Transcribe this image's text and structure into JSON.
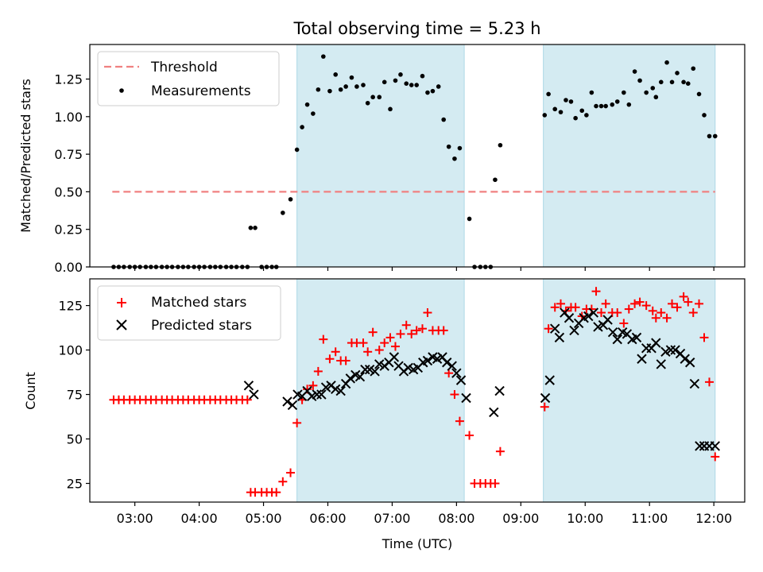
{
  "title": "Total observing time = 5.23 h",
  "colors": {
    "threshold": "#f08080",
    "measurement": "#000000",
    "matched": "#ff0000",
    "predicted": "#000000",
    "observing_window": "#add8e6"
  },
  "chart_data": [
    {
      "type": "scatter",
      "panel": "top",
      "ylabel": "Matched/Predicted stars",
      "xlim": [
        2.3,
        12.48
      ],
      "ylim": [
        0,
        1.48
      ],
      "yticks": [
        0.0,
        0.25,
        0.5,
        0.75,
        1.0,
        1.25
      ],
      "ytick_labels": [
        "0.00",
        "0.25",
        "0.50",
        "0.75",
        "1.00",
        "1.25"
      ],
      "grid": false,
      "legend_position": "upper left",
      "observing_windows": [
        [
          5.52,
          8.12
        ],
        [
          9.35,
          12.02
        ]
      ],
      "threshold": {
        "name": "Threshold",
        "y": 0.5,
        "x_range": [
          2.65,
          12.02
        ],
        "style": "dashed"
      },
      "series": [
        {
          "name": "Measurements",
          "x": [
            2.67,
            2.75,
            2.83,
            2.92,
            3.0,
            3.08,
            3.17,
            3.25,
            3.33,
            3.42,
            3.5,
            3.58,
            3.67,
            3.75,
            3.83,
            3.92,
            4.0,
            4.08,
            4.17,
            4.25,
            4.33,
            4.42,
            4.5,
            4.58,
            4.67,
            4.75,
            4.8,
            4.87,
            4.97,
            5.05,
            5.13,
            5.2,
            5.3,
            5.42,
            5.52,
            5.6,
            5.68,
            5.77,
            5.85,
            5.93,
            6.03,
            6.12,
            6.2,
            6.28,
            6.37,
            6.45,
            6.55,
            6.62,
            6.7,
            6.8,
            6.88,
            6.97,
            7.05,
            7.13,
            7.22,
            7.3,
            7.38,
            7.47,
            7.55,
            7.63,
            7.72,
            7.8,
            7.88,
            7.97,
            8.05,
            8.2,
            8.28,
            8.37,
            8.45,
            8.53,
            8.6,
            8.68,
            9.37,
            9.43,
            9.53,
            9.62,
            9.7,
            9.78,
            9.85,
            9.95,
            10.02,
            10.1,
            10.17,
            10.25,
            10.32,
            10.42,
            10.5,
            10.6,
            10.68,
            10.77,
            10.85,
            10.95,
            11.05,
            11.1,
            11.18,
            11.27,
            11.35,
            11.43,
            11.53,
            11.6,
            11.68,
            11.77,
            11.85,
            11.93,
            12.02
          ],
          "y": [
            0,
            0,
            0,
            0,
            0,
            0,
            0,
            0,
            0,
            0,
            0,
            0,
            0,
            0,
            0,
            0,
            0,
            0,
            0,
            0,
            0,
            0,
            0,
            0,
            0,
            0,
            0.26,
            0.26,
            0,
            0,
            0,
            0,
            0.36,
            0.45,
            0.78,
            0.93,
            1.08,
            1.02,
            1.18,
            1.4,
            1.17,
            1.28,
            1.18,
            1.2,
            1.26,
            1.2,
            1.21,
            1.09,
            1.13,
            1.13,
            1.23,
            1.05,
            1.24,
            1.28,
            1.22,
            1.21,
            1.21,
            1.27,
            1.16,
            1.17,
            1.2,
            0.98,
            0.8,
            0.72,
            0.79,
            0.32,
            0,
            0,
            0,
            0,
            0.58,
            0.81,
            1.01,
            1.15,
            1.05,
            1.03,
            1.11,
            1.1,
            0.99,
            1.04,
            1.01,
            1.16,
            1.07,
            1.07,
            1.07,
            1.08,
            1.1,
            1.16,
            1.08,
            1.3,
            1.24,
            1.16,
            1.19,
            1.13,
            1.23,
            1.36,
            1.23,
            1.29,
            1.23,
            1.22,
            1.32,
            1.15,
            1.01,
            0.87,
            0.87
          ]
        }
      ]
    },
    {
      "type": "scatter",
      "panel": "bottom",
      "ylabel": "Count",
      "xlabel": "Time (UTC)",
      "xlim": [
        2.3,
        12.48
      ],
      "ylim": [
        14.5,
        140
      ],
      "yticks": [
        25,
        50,
        75,
        100,
        125
      ],
      "ytick_labels": [
        "25",
        "50",
        "75",
        "100",
        "125"
      ],
      "xticks": [
        3,
        4,
        5,
        6,
        7,
        8,
        9,
        10,
        11,
        12
      ],
      "xtick_labels": [
        "03:00",
        "04:00",
        "05:00",
        "06:00",
        "07:00",
        "08:00",
        "09:00",
        "10:00",
        "11:00",
        "12:00"
      ],
      "grid": false,
      "legend_position": "upper left",
      "observing_windows": [
        [
          5.52,
          8.12
        ],
        [
          9.35,
          12.02
        ]
      ],
      "series": [
        {
          "name": "Matched stars",
          "marker": "plus",
          "x": [
            2.67,
            2.75,
            2.83,
            2.92,
            3.0,
            3.08,
            3.17,
            3.25,
            3.33,
            3.42,
            3.5,
            3.58,
            3.67,
            3.75,
            3.83,
            3.92,
            4.0,
            4.08,
            4.17,
            4.25,
            4.33,
            4.42,
            4.5,
            4.58,
            4.67,
            4.75,
            4.8,
            4.87,
            4.97,
            5.05,
            5.13,
            5.2,
            5.3,
            5.42,
            5.52,
            5.6,
            5.68,
            5.77,
            5.85,
            5.93,
            6.03,
            6.12,
            6.2,
            6.28,
            6.37,
            6.45,
            6.55,
            6.62,
            6.7,
            6.8,
            6.88,
            6.97,
            7.05,
            7.13,
            7.22,
            7.3,
            7.38,
            7.47,
            7.55,
            7.63,
            7.72,
            7.8,
            7.88,
            7.97,
            8.05,
            8.2,
            8.28,
            8.37,
            8.45,
            8.53,
            8.6,
            8.68,
            9.37,
            9.43,
            9.53,
            9.62,
            9.7,
            9.78,
            9.85,
            9.95,
            10.02,
            10.1,
            10.17,
            10.25,
            10.32,
            10.42,
            10.5,
            10.6,
            10.68,
            10.77,
            10.85,
            10.95,
            11.05,
            11.1,
            11.18,
            11.27,
            11.35,
            11.43,
            11.53,
            11.6,
            11.68,
            11.77,
            11.85,
            11.93,
            12.02
          ],
          "y": [
            72,
            72,
            72,
            72,
            72,
            72,
            72,
            72,
            72,
            72,
            72,
            72,
            72,
            72,
            72,
            72,
            72,
            72,
            72,
            72,
            72,
            72,
            72,
            72,
            72,
            72,
            20,
            20,
            20,
            20,
            20,
            20,
            26,
            31,
            59,
            72,
            78,
            80,
            88,
            106,
            95,
            99,
            94,
            94,
            104,
            104,
            104,
            99,
            110,
            100,
            104,
            107,
            102,
            109,
            114,
            109,
            111,
            112,
            121,
            111,
            111,
            111,
            87,
            75,
            60,
            52,
            25,
            25,
            25,
            25,
            25,
            43,
            68,
            112,
            124,
            126,
            122,
            124,
            124,
            119,
            123,
            123,
            133,
            121,
            126,
            121,
            121,
            115,
            123,
            126,
            127,
            125,
            122,
            118,
            121,
            118,
            126,
            124,
            130,
            127,
            121,
            126,
            107,
            82,
            40
          ]
        },
        {
          "name": "Predicted stars",
          "marker": "x",
          "x": [
            4.77,
            4.85,
            5.37,
            5.45,
            5.53,
            5.6,
            5.68,
            5.75,
            5.83,
            5.9,
            5.97,
            6.05,
            6.12,
            6.2,
            6.28,
            6.35,
            6.43,
            6.5,
            6.58,
            6.65,
            6.73,
            6.8,
            6.88,
            6.95,
            7.03,
            7.1,
            7.18,
            7.25,
            7.33,
            7.4,
            7.48,
            7.55,
            7.63,
            7.7,
            7.78,
            7.85,
            7.93,
            8.0,
            8.07,
            8.15,
            8.58,
            8.67,
            9.38,
            9.45,
            9.53,
            9.6,
            9.68,
            9.75,
            9.83,
            9.9,
            9.98,
            10.05,
            10.13,
            10.2,
            10.28,
            10.35,
            10.43,
            10.5,
            10.58,
            10.65,
            10.73,
            10.8,
            10.88,
            10.95,
            11.03,
            11.1,
            11.18,
            11.25,
            11.33,
            11.4,
            11.48,
            11.55,
            11.63,
            11.7,
            11.78,
            11.85,
            11.93,
            12.02
          ],
          "y": [
            80,
            75,
            71,
            69,
            75,
            74,
            77,
            74,
            75,
            75,
            79,
            80,
            78,
            77,
            81,
            84,
            86,
            85,
            89,
            89,
            88,
            92,
            91,
            93,
            96,
            91,
            88,
            90,
            89,
            90,
            93,
            94,
            96,
            95,
            96,
            93,
            91,
            87,
            83,
            73,
            65,
            77,
            73,
            83,
            112,
            107,
            121,
            118,
            111,
            115,
            118,
            119,
            121,
            113,
            114,
            117,
            110,
            106,
            110,
            109,
            106,
            107,
            95,
            101,
            101,
            104,
            92,
            99,
            100,
            100,
            98,
            95,
            93,
            81,
            46,
            46,
            46,
            46
          ]
        }
      ]
    }
  ]
}
